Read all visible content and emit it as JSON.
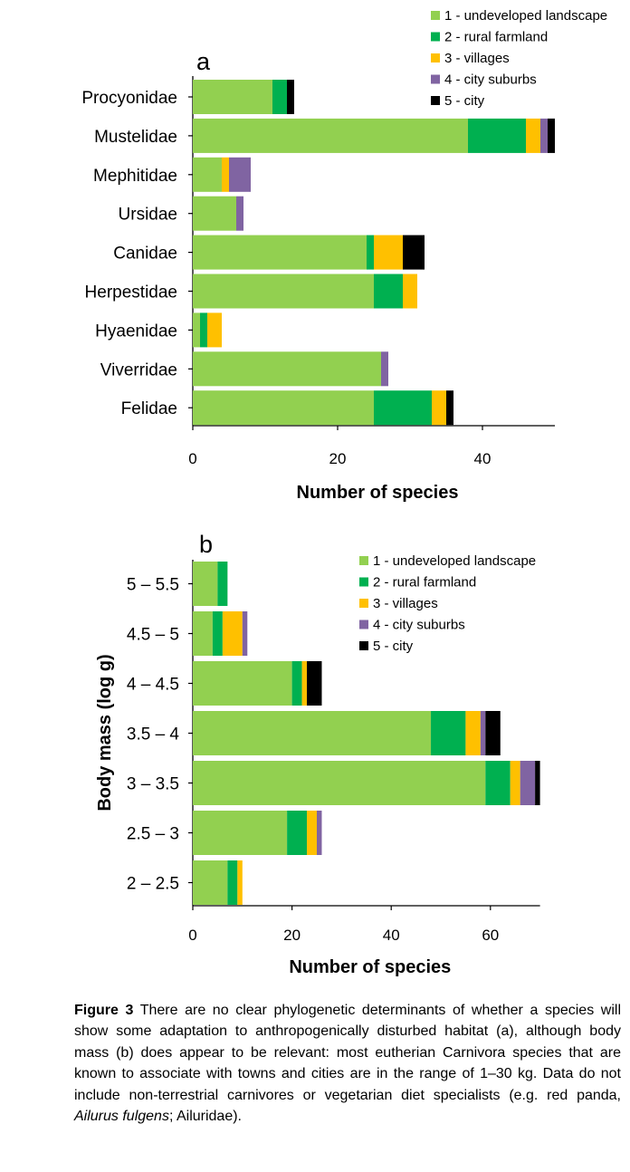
{
  "segment_names": [
    "1 - undeveloped landscape",
    "2 - rural farmland",
    "3 - villages",
    "4 - city suburbs",
    "5 - city"
  ],
  "segment_colors": [
    "#92d050",
    "#00b050",
    "#ffc000",
    "#8064a2",
    "#000000"
  ],
  "chart_data": [
    {
      "type": "bar",
      "orientation": "horizontal",
      "stacked": true,
      "panel_label": "a",
      "xlabel": "Number of species",
      "ylabel": "",
      "xlim": [
        0,
        50
      ],
      "xticks": [
        "0",
        "20",
        "40"
      ],
      "xtick_values": [
        0,
        20,
        40
      ],
      "categories": [
        "Procyonidae",
        "Mustelidae",
        "Mephitidae",
        "Ursidae",
        "Canidae",
        "Herpestidae",
        "Hyaenidae",
        "Viverridae",
        "Felidae"
      ],
      "series": [
        {
          "name": "1 - undeveloped landscape",
          "values": [
            11,
            38,
            4,
            6,
            24,
            25,
            1,
            26,
            25
          ]
        },
        {
          "name": "2 - rural farmland",
          "values": [
            2,
            8,
            0,
            0,
            1,
            4,
            1,
            0,
            8
          ]
        },
        {
          "name": "3 - villages",
          "values": [
            0,
            2,
            1,
            0,
            4,
            2,
            2,
            0,
            2
          ]
        },
        {
          "name": "4 - city suburbs",
          "values": [
            0,
            1,
            3,
            1,
            0,
            0,
            0,
            1,
            0
          ]
        },
        {
          "name": "5 - city",
          "values": [
            1,
            1,
            0,
            0,
            3,
            0,
            0,
            0,
            1
          ]
        }
      ],
      "legend_position": "top-right"
    },
    {
      "type": "bar",
      "orientation": "horizontal",
      "stacked": true,
      "panel_label": "b",
      "xlabel": "Number of species",
      "ylabel": "Body mass (log g)",
      "xlim": [
        0,
        70
      ],
      "xticks": [
        "0",
        "20",
        "40",
        "60"
      ],
      "xtick_values": [
        0,
        20,
        40,
        60
      ],
      "categories": [
        "5 – 5.5",
        "4.5 – 5",
        "4 – 4.5",
        "3.5 – 4",
        "3 – 3.5",
        "2.5 – 3",
        "2 – 2.5"
      ],
      "series": [
        {
          "name": "1 - undeveloped landscape",
          "values": [
            5,
            4,
            20,
            48,
            59,
            19,
            7
          ]
        },
        {
          "name": "2 - rural farmland",
          "values": [
            2,
            2,
            2,
            7,
            5,
            4,
            2
          ]
        },
        {
          "name": "3 - villages",
          "values": [
            0,
            4,
            1,
            3,
            2,
            2,
            1
          ]
        },
        {
          "name": "4 - city suburbs",
          "values": [
            0,
            1,
            0,
            1,
            3,
            1,
            0
          ]
        },
        {
          "name": "5 - city",
          "values": [
            0,
            0,
            3,
            3,
            1,
            0,
            0
          ]
        }
      ],
      "legend_position": "top-right"
    }
  ],
  "caption": {
    "label": "Figure 3",
    "text_1": " There are no clear phylogenetic determinants of whether a species will show some adaptation to anthropogenically disturbed habitat (a), although body mass (b) does appear to be relevant: most eutherian Carnivora species that are known to associate with towns and cities are in the range of 1–30 kg. Data do not include non-terrestrial carnivores or vegetarian diet specialists (e.g. red panda, ",
    "italic": "Ailurus fulgens",
    "text_2": "; Ailuridae)."
  }
}
